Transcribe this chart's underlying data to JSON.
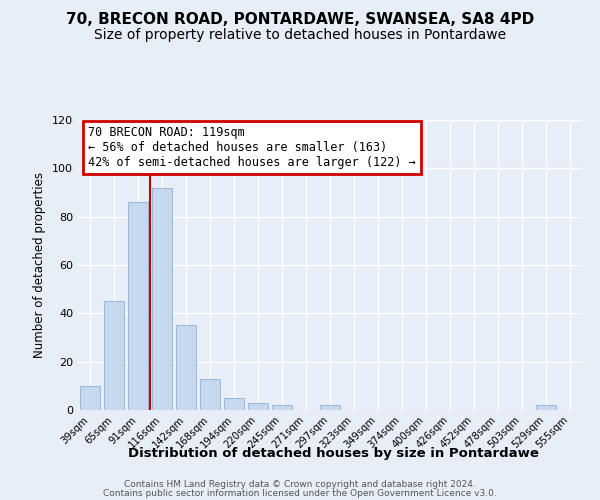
{
  "title": "70, BRECON ROAD, PONTARDAWE, SWANSEA, SA8 4PD",
  "subtitle": "Size of property relative to detached houses in Pontardawe",
  "xlabel": "Distribution of detached houses by size in Pontardawe",
  "ylabel": "Number of detached properties",
  "categories": [
    "39sqm",
    "65sqm",
    "91sqm",
    "116sqm",
    "142sqm",
    "168sqm",
    "194sqm",
    "220sqm",
    "245sqm",
    "271sqm",
    "297sqm",
    "323sqm",
    "349sqm",
    "374sqm",
    "400sqm",
    "426sqm",
    "452sqm",
    "478sqm",
    "503sqm",
    "529sqm",
    "555sqm"
  ],
  "values": [
    10,
    45,
    86,
    92,
    35,
    13,
    5,
    3,
    2,
    0,
    2,
    0,
    0,
    0,
    0,
    0,
    0,
    0,
    0,
    2,
    0
  ],
  "bar_color": "#c5d8ee",
  "bar_edgecolor": "#9ab8d8",
  "annotation_title": "70 BRECON ROAD: 119sqm",
  "annotation_line1": "← 56% of detached houses are smaller (163)",
  "annotation_line2": "42% of semi-detached houses are larger (122) →",
  "annotation_box_color": "#cc0000",
  "vline_color": "#cc0000",
  "ylim": [
    0,
    120
  ],
  "yticks": [
    0,
    20,
    40,
    60,
    80,
    100,
    120
  ],
  "plot_bg_color": "#e8eef8",
  "fig_bg_color": "#e8eef8",
  "footer_line1": "Contains HM Land Registry data © Crown copyright and database right 2024.",
  "footer_line2": "Contains public sector information licensed under the Open Government Licence v3.0.",
  "title_fontsize": 11,
  "subtitle_fontsize": 10,
  "xlabel_fontsize": 9.5,
  "ylabel_fontsize": 8.5
}
